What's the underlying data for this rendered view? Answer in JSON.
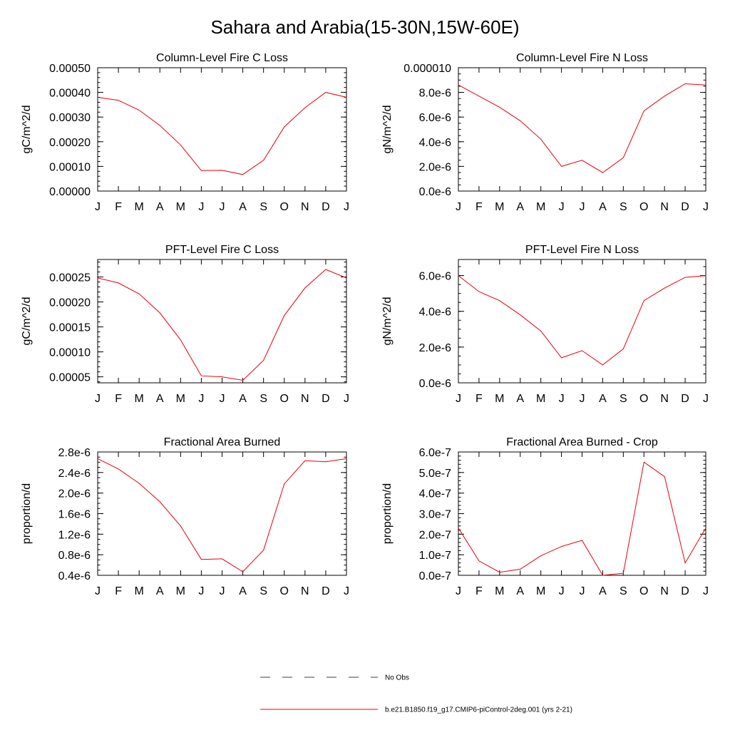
{
  "page": {
    "title": "Sahara and Arabia(15-30N,15W-60E)"
  },
  "colors": {
    "series": "#e8000b",
    "axis": "#000000",
    "obs": "#000000"
  },
  "months": [
    "J",
    "F",
    "M",
    "A",
    "M",
    "J",
    "J",
    "A",
    "S",
    "O",
    "N",
    "D",
    "J"
  ],
  "chart_data": [
    {
      "type": "line",
      "title": "Column-Level Fire C Loss",
      "ylabel": "gC/m^2/d",
      "xlabel": "",
      "ylim": [
        0,
        0.0005
      ],
      "yticks": [
        0,
        0.0001,
        0.0002,
        0.0003,
        0.0004,
        0.0005
      ],
      "ytick_labels": [
        "0.00000",
        "0.00010",
        "0.00020",
        "0.00030",
        "0.00040",
        "0.00050"
      ],
      "yminor_step": 2e-05,
      "values": [
        0.00038,
        0.000368,
        0.000328,
        0.000266,
        0.000187,
        8.3e-05,
        8.4e-05,
        6.7e-05,
        0.000125,
        0.00026,
        0.000338,
        0.0004,
        0.00038
      ]
    },
    {
      "type": "line",
      "title": "Column-Level Fire N Loss",
      "ylabel": "gN/m^2/d",
      "xlabel": "",
      "ylim": [
        0,
        1e-05
      ],
      "yticks": [
        0,
        2e-06,
        4e-06,
        6e-06,
        8e-06,
        1e-05
      ],
      "ytick_labels": [
        "0.0e-6",
        "2.0e-6",
        "4.0e-6",
        "6.0e-6",
        "8.0e-6",
        "0.000010"
      ],
      "yminor_step": 5e-07,
      "values": [
        8.6e-06,
        7.7e-06,
        6.8e-06,
        5.7e-06,
        4.2e-06,
        2e-06,
        2.5e-06,
        1.5e-06,
        2.7e-06,
        6.5e-06,
        7.7e-06,
        8.7e-06,
        8.6e-06
      ]
    },
    {
      "type": "line",
      "title": "PFT-Level Fire C Loss",
      "ylabel": "gC/m^2/d",
      "xlabel": "",
      "ylim": [
        3.8e-05,
        0.000285
      ],
      "yticks": [
        5e-05,
        0.0001,
        0.00015,
        0.0002,
        0.00025
      ],
      "ytick_labels": [
        "0.00005",
        "0.00010",
        "0.00015",
        "0.00020",
        "0.00025"
      ],
      "yminor_step": 1e-05,
      "values": [
        0.000248,
        0.000238,
        0.000216,
        0.000178,
        0.000124,
        5.2e-05,
        5e-05,
        4.3e-05,
        8.3e-05,
        0.000173,
        0.000228,
        0.000265,
        0.000248
      ]
    },
    {
      "type": "line",
      "title": "PFT-Level Fire N Loss",
      "ylabel": "gN/m^2/d",
      "xlabel": "",
      "ylim": [
        0,
        6.9e-06
      ],
      "yticks": [
        0,
        2e-06,
        4e-06,
        6e-06
      ],
      "ytick_labels": [
        "0.0e-6",
        "2.0e-6",
        "4.0e-6",
        "6.0e-6"
      ],
      "yminor_step": 5e-07,
      "values": [
        6e-06,
        5.1e-06,
        4.6e-06,
        3.8e-06,
        2.9e-06,
        1.4e-06,
        1.8e-06,
        1e-06,
        1.9e-06,
        4.6e-06,
        5.3e-06,
        5.9e-06,
        6e-06
      ]
    },
    {
      "type": "line",
      "title": "Fractional Area Burned",
      "ylabel": "proportion/d",
      "xlabel": "",
      "ylim": [
        4e-07,
        2.8e-06
      ],
      "yticks": [
        4e-07,
        8e-07,
        1.2e-06,
        1.6e-06,
        2e-06,
        2.4e-06,
        2.8e-06
      ],
      "ytick_labels": [
        "0.4e-6",
        "0.8e-6",
        "1.2e-6",
        "1.6e-6",
        "2.0e-6",
        "2.4e-6",
        "2.8e-6"
      ],
      "yminor_step": 1e-07,
      "values": [
        2.67e-06,
        2.47e-06,
        2.19e-06,
        1.83e-06,
        1.36e-06,
        7.1e-07,
        7.2e-07,
        4.7e-07,
        8.9e-07,
        2.18e-06,
        2.63e-06,
        2.61e-06,
        2.67e-06
      ]
    },
    {
      "type": "line",
      "title": "Fractional Area Burned - Crop",
      "ylabel": "proportion/d",
      "xlabel": "",
      "ylim": [
        0,
        6e-07
      ],
      "yticks": [
        0,
        1e-07,
        2e-07,
        3e-07,
        4e-07,
        5e-07,
        6e-07
      ],
      "ytick_labels": [
        "0.0e-7",
        "1.0e-7",
        "2.0e-7",
        "3.0e-7",
        "4.0e-7",
        "5.0e-7",
        "6.0e-7"
      ],
      "yminor_step": 2e-08,
      "values": [
        2.3e-07,
        7e-08,
        1.5e-08,
        3e-08,
        9.5e-08,
        1.4e-07,
        1.7e-07,
        0.0,
        1e-08,
        5.5e-07,
        4.8e-07,
        6e-08,
        2.3e-07
      ]
    }
  ],
  "legend": {
    "obs_label": "No Obs",
    "model_label": "b.e21.B1850.f19_g17.CMIP6-piControl-2deg.001 (yrs 2-21)"
  }
}
